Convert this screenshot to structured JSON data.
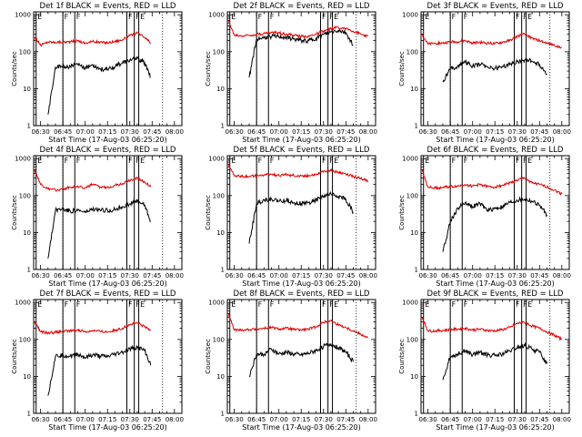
{
  "figure": {
    "colors": {
      "events": "#000000",
      "lld": "#e00000",
      "background": "#ffffff"
    },
    "xtick_labels": [
      "06:30",
      "06:45",
      "07:00",
      "07:15",
      "07:30",
      "07:45",
      "08:00"
    ],
    "ytick_labels": [
      "1",
      "10",
      "100",
      "1000"
    ],
    "xlabel": "Start Time (17-Aug-03 06:25:20)",
    "ylabel": "Counts/sec"
  },
  "chart_data": [
    {
      "type": "line",
      "title": "Det 1f BLACK = Events, RED = LLD",
      "yscale": "log",
      "ylim": [
        1,
        1200
      ],
      "xlim": [
        "06:25:20",
        "08:05:00"
      ],
      "xlabel": "Start Time (17-Aug-03 06:25:20)",
      "ylabel": "Counts/sec",
      "grid": false,
      "x": [
        "06:26",
        "06:30",
        "06:35",
        "06:40",
        "06:45",
        "06:50",
        "06:55",
        "07:00",
        "07:05",
        "07:10",
        "07:15",
        "07:20",
        "07:25",
        "07:30",
        "07:35",
        "07:40",
        "07:44"
      ],
      "series": [
        {
          "name": "RED = LLD",
          "values": [
            250,
            150,
            185,
            180,
            185,
            185,
            200,
            170,
            190,
            180,
            175,
            190,
            210,
            270,
            320,
            240,
            175
          ]
        },
        {
          "name": "BLACK = Events",
          "values": [
            null,
            null,
            2,
            38,
            40,
            40,
            45,
            35,
            45,
            35,
            32,
            40,
            50,
            60,
            65,
            50,
            20
          ]
        }
      ],
      "flags": [
        {
          "label": "E",
          "time": "06:27"
        },
        {
          "label": "F",
          "time": "06:45"
        },
        {
          "label": "F",
          "time": "06:53"
        },
        {
          "label": "F",
          "time": "07:28"
        },
        {
          "label": "F",
          "time": "07:33"
        },
        {
          "label": "E",
          "time": "07:36"
        }
      ],
      "dotted_lines": [
        "06:45",
        "07:52"
      ]
    },
    {
      "type": "line",
      "title": "Det 2f BLACK = Events, RED = LLD",
      "yscale": "log",
      "ylim": [
        1,
        1200
      ],
      "xlim": [
        "06:25:20",
        "08:05:00"
      ],
      "xlabel": "Start Time (17-Aug-03 06:25:20)",
      "ylabel": "Counts/sec",
      "grid": false,
      "x": [
        "06:26",
        "06:30",
        "06:35",
        "06:40",
        "06:45",
        "06:50",
        "06:55",
        "07:00",
        "07:05",
        "07:10",
        "07:15",
        "07:20",
        "07:25",
        "07:30",
        "07:35",
        "07:40",
        "07:45",
        "07:50",
        "07:55",
        "08:00"
      ],
      "series": [
        {
          "name": "RED = LLD",
          "values": [
            700,
            280,
            270,
            280,
            300,
            310,
            330,
            330,
            300,
            280,
            260,
            260,
            300,
            360,
            420,
            460,
            420,
            360,
            300,
            260
          ]
        },
        {
          "name": "BLACK = Events",
          "values": [
            null,
            null,
            null,
            20,
            220,
            240,
            260,
            260,
            240,
            220,
            200,
            200,
            230,
            290,
            340,
            380,
            330,
            150,
            null,
            null
          ]
        }
      ],
      "flags": [
        {
          "label": "E",
          "time": "06:27"
        },
        {
          "label": "F",
          "time": "06:45"
        },
        {
          "label": "F",
          "time": "06:53"
        },
        {
          "label": "F",
          "time": "07:28"
        },
        {
          "label": "F",
          "time": "07:33"
        },
        {
          "label": "E",
          "time": "07:36"
        }
      ],
      "dotted_lines": [
        "06:45",
        "07:52"
      ]
    },
    {
      "type": "line",
      "title": "Det 3f BLACK = Events, RED = LLD",
      "yscale": "log",
      "ylim": [
        1,
        1200
      ],
      "xlim": [
        "06:25:20",
        "08:05:00"
      ],
      "xlabel": "Start Time (17-Aug-03 06:25:20)",
      "ylabel": "Counts/sec",
      "grid": false,
      "x": [
        "06:26",
        "06:30",
        "06:35",
        "06:40",
        "06:45",
        "06:50",
        "06:55",
        "07:00",
        "07:05",
        "07:10",
        "07:15",
        "07:20",
        "07:25",
        "07:30",
        "07:35",
        "07:40",
        "07:45",
        "07:50",
        "07:55",
        "08:00"
      ],
      "series": [
        {
          "name": "RED = LLD",
          "values": [
            300,
            160,
            170,
            170,
            185,
            185,
            200,
            170,
            180,
            170,
            165,
            180,
            200,
            260,
            300,
            230,
            200,
            170,
            150,
            130
          ]
        },
        {
          "name": "BLACK = Events",
          "values": [
            null,
            null,
            null,
            15,
            35,
            40,
            55,
            40,
            45,
            40,
            35,
            40,
            45,
            55,
            60,
            55,
            45,
            25,
            null,
            null
          ]
        }
      ],
      "flags": [
        {
          "label": "E",
          "time": "06:27"
        },
        {
          "label": "F",
          "time": "06:45"
        },
        {
          "label": "F",
          "time": "06:53"
        },
        {
          "label": "F",
          "time": "07:28"
        },
        {
          "label": "F",
          "time": "07:33"
        },
        {
          "label": "E",
          "time": "07:36"
        }
      ],
      "dotted_lines": [
        "06:45",
        "07:52"
      ]
    },
    {
      "type": "line",
      "title": "Det 4f BLACK = Events, RED = LLD",
      "yscale": "log",
      "ylim": [
        1,
        1200
      ],
      "xlim": [
        "06:25:20",
        "08:05:00"
      ],
      "xlabel": "Start Time (17-Aug-03 06:25:20)",
      "ylabel": "Counts/sec",
      "grid": false,
      "x": [
        "06:26",
        "06:30",
        "06:35",
        "06:40",
        "06:45",
        "06:50",
        "06:55",
        "07:00",
        "07:05",
        "07:10",
        "07:15",
        "07:20",
        "07:25",
        "07:30",
        "07:35",
        "07:40",
        "07:44"
      ],
      "series": [
        {
          "name": "RED = LLD",
          "values": [
            500,
            200,
            150,
            140,
            150,
            170,
            180,
            160,
            200,
            170,
            165,
            190,
            210,
            260,
            300,
            230,
            175
          ]
        },
        {
          "name": "BLACK = Events",
          "values": [
            null,
            null,
            2,
            40,
            45,
            38,
            40,
            35,
            42,
            40,
            40,
            42,
            50,
            60,
            70,
            55,
            20
          ]
        }
      ],
      "flags": [
        {
          "label": "E",
          "time": "06:27"
        },
        {
          "label": "F",
          "time": "06:45"
        },
        {
          "label": "F",
          "time": "06:53"
        },
        {
          "label": "F",
          "time": "07:28"
        },
        {
          "label": "F",
          "time": "07:33"
        },
        {
          "label": "E",
          "time": "07:36"
        }
      ],
      "dotted_lines": [
        "06:45",
        "07:52"
      ]
    },
    {
      "type": "line",
      "title": "Det 5f BLACK = Events, RED = LLD",
      "yscale": "log",
      "ylim": [
        1,
        1200
      ],
      "xlim": [
        "06:25:20",
        "08:05:00"
      ],
      "xlabel": "Start Time (17-Aug-03 06:25:20)",
      "ylabel": "Counts/sec",
      "grid": false,
      "x": [
        "06:26",
        "06:30",
        "06:35",
        "06:40",
        "06:45",
        "06:50",
        "06:55",
        "07:00",
        "07:05",
        "07:10",
        "07:15",
        "07:20",
        "07:25",
        "07:30",
        "07:35",
        "07:40",
        "07:45",
        "07:50",
        "07:55",
        "08:00"
      ],
      "series": [
        {
          "name": "RED = LLD",
          "values": [
            700,
            350,
            330,
            330,
            340,
            360,
            380,
            350,
            370,
            350,
            340,
            350,
            380,
            450,
            480,
            420,
            380,
            330,
            290,
            250
          ]
        },
        {
          "name": "BLACK = Events",
          "values": [
            null,
            null,
            null,
            5,
            60,
            75,
            80,
            70,
            75,
            65,
            60,
            65,
            75,
            95,
            110,
            95,
            80,
            35,
            null,
            null
          ]
        }
      ],
      "flags": [
        {
          "label": "E",
          "time": "06:27"
        },
        {
          "label": "F",
          "time": "06:45"
        },
        {
          "label": "F",
          "time": "06:53"
        },
        {
          "label": "F",
          "time": "07:28"
        },
        {
          "label": "F",
          "time": "07:33"
        },
        {
          "label": "E",
          "time": "07:36"
        }
      ],
      "dotted_lines": [
        "06:45",
        "07:52"
      ]
    },
    {
      "type": "line",
      "title": "Det 6f BLACK = Events, RED = LLD",
      "yscale": "log",
      "ylim": [
        1,
        1200
      ],
      "xlim": [
        "06:25:20",
        "08:05:00"
      ],
      "xlabel": "Start Time (17-Aug-03 06:25:20)",
      "ylabel": "Counts/sec",
      "grid": false,
      "x": [
        "06:26",
        "06:30",
        "06:35",
        "06:40",
        "06:45",
        "06:50",
        "06:55",
        "07:00",
        "07:05",
        "07:10",
        "07:15",
        "07:20",
        "07:25",
        "07:30",
        "07:35",
        "07:40",
        "07:45",
        "07:50",
        "07:55",
        "08:00"
      ],
      "series": [
        {
          "name": "RED = LLD",
          "values": [
            500,
            170,
            160,
            165,
            175,
            180,
            200,
            180,
            200,
            175,
            170,
            190,
            220,
            260,
            300,
            220,
            200,
            170,
            140,
            110
          ]
        },
        {
          "name": "BLACK = Events",
          "values": [
            null,
            null,
            null,
            3,
            20,
            45,
            65,
            50,
            60,
            40,
            45,
            50,
            65,
            75,
            80,
            70,
            55,
            30,
            null,
            null
          ]
        }
      ],
      "flags": [
        {
          "label": "E",
          "time": "06:27"
        },
        {
          "label": "F",
          "time": "06:45"
        },
        {
          "label": "F",
          "time": "06:53"
        },
        {
          "label": "F",
          "time": "07:28"
        },
        {
          "label": "F",
          "time": "07:33"
        },
        {
          "label": "E",
          "time": "07:36"
        }
      ],
      "dotted_lines": [
        "06:45",
        "07:52"
      ]
    },
    {
      "type": "line",
      "title": "Det 7f BLACK = Events, RED = LLD",
      "yscale": "log",
      "ylim": [
        1,
        1200
      ],
      "xlim": [
        "06:25:20",
        "08:05:00"
      ],
      "xlabel": "Start Time (17-Aug-03 06:25:20)",
      "ylabel": "Counts/sec",
      "grid": false,
      "x": [
        "06:26",
        "06:30",
        "06:35",
        "06:40",
        "06:45",
        "06:50",
        "06:55",
        "07:00",
        "07:05",
        "07:10",
        "07:15",
        "07:20",
        "07:25",
        "07:30",
        "07:35",
        "07:40",
        "07:44"
      ],
      "series": [
        {
          "name": "RED = LLD",
          "values": [
            300,
            160,
            150,
            155,
            165,
            170,
            180,
            160,
            175,
            165,
            160,
            175,
            200,
            250,
            280,
            220,
            175
          ]
        },
        {
          "name": "BLACK = Events",
          "values": [
            null,
            null,
            3,
            35,
            38,
            35,
            40,
            32,
            38,
            35,
            34,
            40,
            45,
            55,
            60,
            50,
            20
          ]
        }
      ],
      "flags": [
        {
          "label": "E",
          "time": "06:27"
        },
        {
          "label": "F",
          "time": "06:45"
        },
        {
          "label": "F",
          "time": "06:53"
        },
        {
          "label": "F",
          "time": "07:28"
        },
        {
          "label": "F",
          "time": "07:33"
        },
        {
          "label": "E",
          "time": "07:36"
        }
      ],
      "dotted_lines": [
        "06:45",
        "07:52"
      ]
    },
    {
      "type": "line",
      "title": "Det 8f BLACK = Events, RED = LLD",
      "yscale": "log",
      "ylim": [
        1,
        1200
      ],
      "xlim": [
        "06:25:20",
        "08:05:00"
      ],
      "xlabel": "Start Time (17-Aug-03 06:25:20)",
      "ylabel": "Counts/sec",
      "grid": false,
      "x": [
        "06:26",
        "06:30",
        "06:35",
        "06:40",
        "06:45",
        "06:50",
        "06:55",
        "07:00",
        "07:05",
        "07:10",
        "07:15",
        "07:20",
        "07:25",
        "07:30",
        "07:35",
        "07:40",
        "07:45",
        "07:50",
        "07:55",
        "08:00"
      ],
      "series": [
        {
          "name": "RED = LLD",
          "values": [
            500,
            180,
            180,
            185,
            190,
            200,
            210,
            190,
            200,
            185,
            180,
            190,
            220,
            290,
            320,
            250,
            210,
            170,
            140,
            110
          ]
        },
        {
          "name": "BLACK = Events",
          "values": [
            null,
            null,
            null,
            10,
            40,
            40,
            55,
            40,
            45,
            40,
            38,
            42,
            50,
            65,
            75,
            60,
            45,
            25,
            null,
            null
          ]
        }
      ],
      "flags": [
        {
          "label": "E",
          "time": "06:27"
        },
        {
          "label": "F",
          "time": "06:45"
        },
        {
          "label": "F",
          "time": "06:53"
        },
        {
          "label": "F",
          "time": "07:28"
        },
        {
          "label": "F",
          "time": "07:33"
        },
        {
          "label": "E",
          "time": "07:36"
        }
      ],
      "dotted_lines": [
        "06:45",
        "07:52"
      ]
    },
    {
      "type": "line",
      "title": "Det 9f BLACK = Events, RED = LLD",
      "yscale": "log",
      "ylim": [
        1,
        1200
      ],
      "xlim": [
        "06:25:20",
        "08:05:00"
      ],
      "xlabel": "Start Time (17-Aug-03 06:25:20)",
      "ylabel": "Counts/sec",
      "grid": false,
      "x": [
        "06:26",
        "06:30",
        "06:35",
        "06:40",
        "06:45",
        "06:50",
        "06:55",
        "07:00",
        "07:05",
        "07:10",
        "07:15",
        "07:20",
        "07:25",
        "07:30",
        "07:35",
        "07:40",
        "07:45",
        "07:50",
        "07:55",
        "08:00"
      ],
      "series": [
        {
          "name": "RED = LLD",
          "values": [
            400,
            170,
            170,
            175,
            185,
            190,
            200,
            180,
            190,
            175,
            170,
            185,
            210,
            270,
            290,
            230,
            200,
            160,
            130,
            100
          ]
        },
        {
          "name": "BLACK = Events",
          "values": [
            null,
            null,
            null,
            8,
            35,
            40,
            50,
            38,
            45,
            38,
            36,
            40,
            48,
            60,
            68,
            55,
            45,
            22,
            null,
            null
          ]
        }
      ],
      "flags": [
        {
          "label": "E",
          "time": "06:27"
        },
        {
          "label": "F",
          "time": "06:45"
        },
        {
          "label": "F",
          "time": "06:53"
        },
        {
          "label": "F",
          "time": "07:28"
        },
        {
          "label": "F",
          "time": "07:33"
        },
        {
          "label": "E",
          "time": "07:36"
        }
      ],
      "dotted_lines": [
        "06:45",
        "07:52"
      ]
    }
  ]
}
